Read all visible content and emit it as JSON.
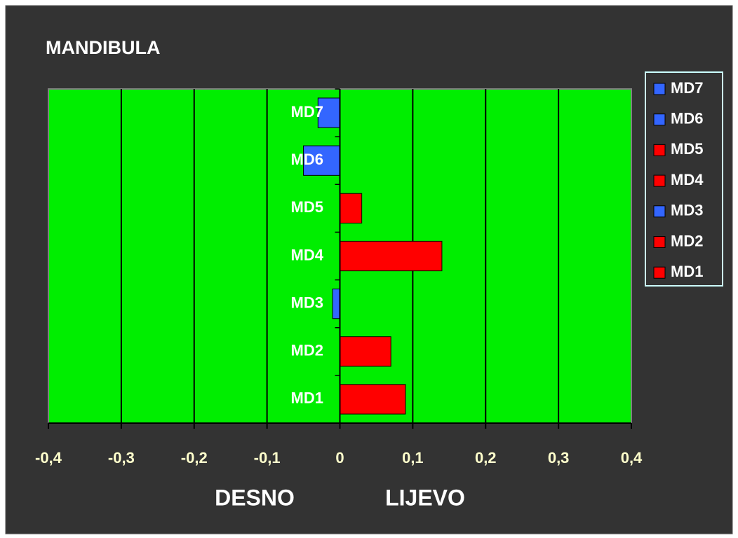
{
  "chart_data": {
    "type": "bar",
    "orientation": "horizontal",
    "title": "MANDIBULA",
    "categories": [
      "MD1",
      "MD2",
      "MD3",
      "MD4",
      "MD5",
      "MD6",
      "MD7"
    ],
    "values": [
      0.09,
      0.07,
      -0.01,
      0.14,
      0.03,
      -0.05,
      -0.03
    ],
    "colors": [
      "#ff0000",
      "#ff0000",
      "#3366ff",
      "#ff0000",
      "#ff0000",
      "#3366ff",
      "#3366ff"
    ],
    "xlim": [
      -0.4,
      0.4
    ],
    "xticks": [
      {
        "value": -0.4,
        "label": "-0,4"
      },
      {
        "value": -0.3,
        "label": "-0,3"
      },
      {
        "value": -0.2,
        "label": "-0,2"
      },
      {
        "value": -0.1,
        "label": "-0,1"
      },
      0,
      {
        "value": 0.1,
        "label": "0,1"
      },
      {
        "value": 0.2,
        "label": "0,2"
      },
      {
        "value": 0.3,
        "label": "0,3"
      },
      {
        "value": 0.4,
        "label": "0,4"
      }
    ],
    "annotations": [
      "DESNO",
      "LIJEVO"
    ],
    "grid": true,
    "plot_background": "#00ee00",
    "legend": "right"
  }
}
